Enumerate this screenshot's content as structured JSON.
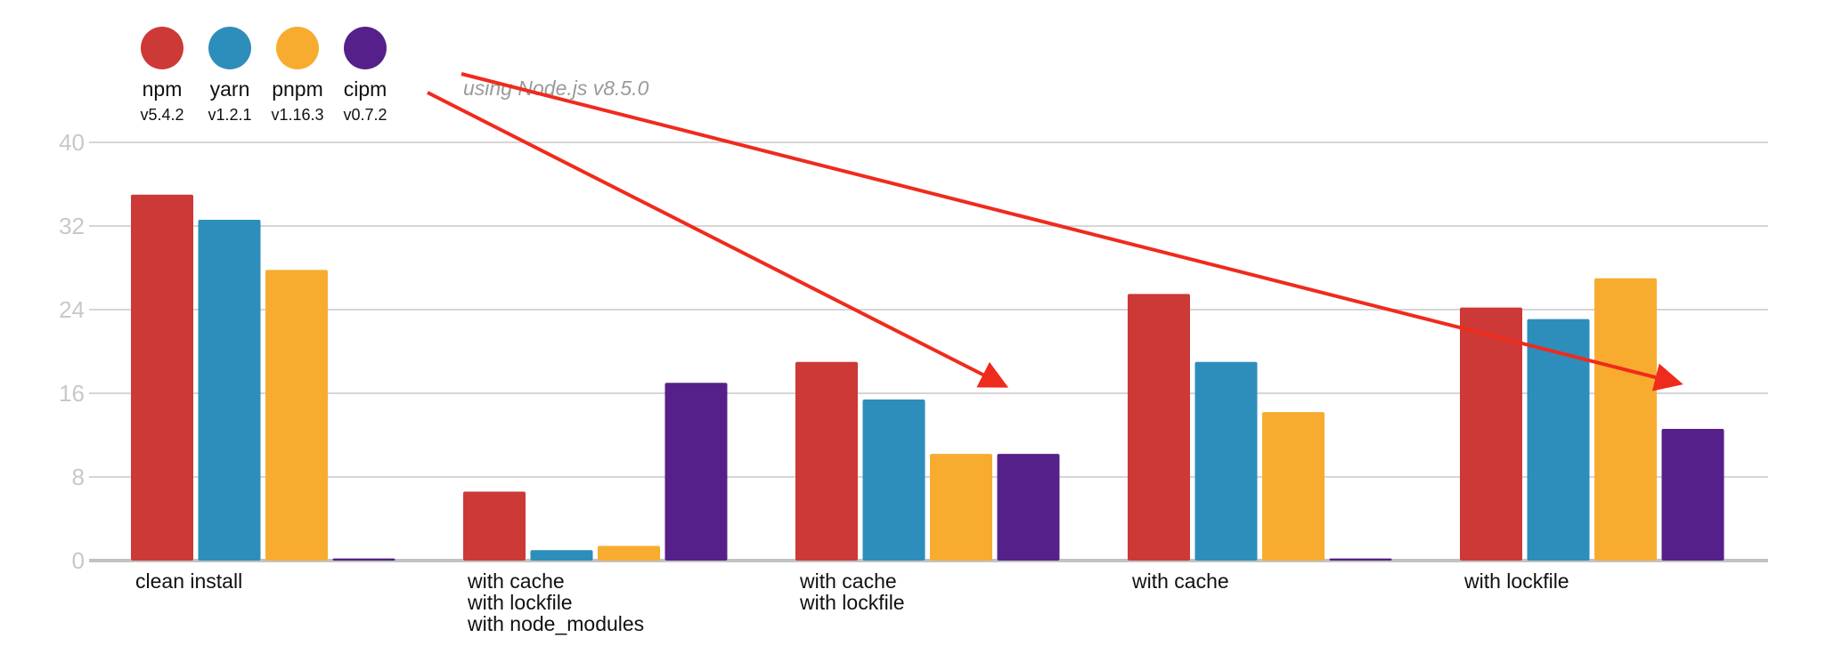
{
  "chart_data": {
    "type": "bar",
    "title": "",
    "annotation": "using Node.js v8.5.0",
    "ylim": [
      0,
      40
    ],
    "yticks": [
      0,
      8,
      16,
      24,
      32,
      40
    ],
    "grid": true,
    "legend_position": "top-left",
    "categories": [
      [
        "clean install"
      ],
      [
        "with cache",
        "with lockfile",
        "with node_modules"
      ],
      [
        "with cache",
        "with lockfile"
      ],
      [
        "with cache"
      ],
      [
        "with lockfile"
      ]
    ],
    "series": [
      {
        "name": "npm",
        "version": "v5.4.2",
        "color": "#cc3936",
        "values": [
          35.0,
          6.6,
          19.0,
          25.5,
          24.2
        ]
      },
      {
        "name": "yarn",
        "version": "v1.2.1",
        "color": "#2d8ebb",
        "values": [
          32.6,
          1.0,
          15.4,
          19.0,
          23.1
        ]
      },
      {
        "name": "pnpm",
        "version": "v1.16.3",
        "color": "#f8ac2f",
        "values": [
          27.8,
          1.4,
          10.2,
          14.2,
          27.0
        ]
      },
      {
        "name": "cipm",
        "version": "v0.7.2",
        "color": "#56208a",
        "values": [
          0.2,
          17.0,
          10.2,
          0.2,
          12.6
        ]
      }
    ],
    "arrows_color": "#ef2b1d"
  }
}
